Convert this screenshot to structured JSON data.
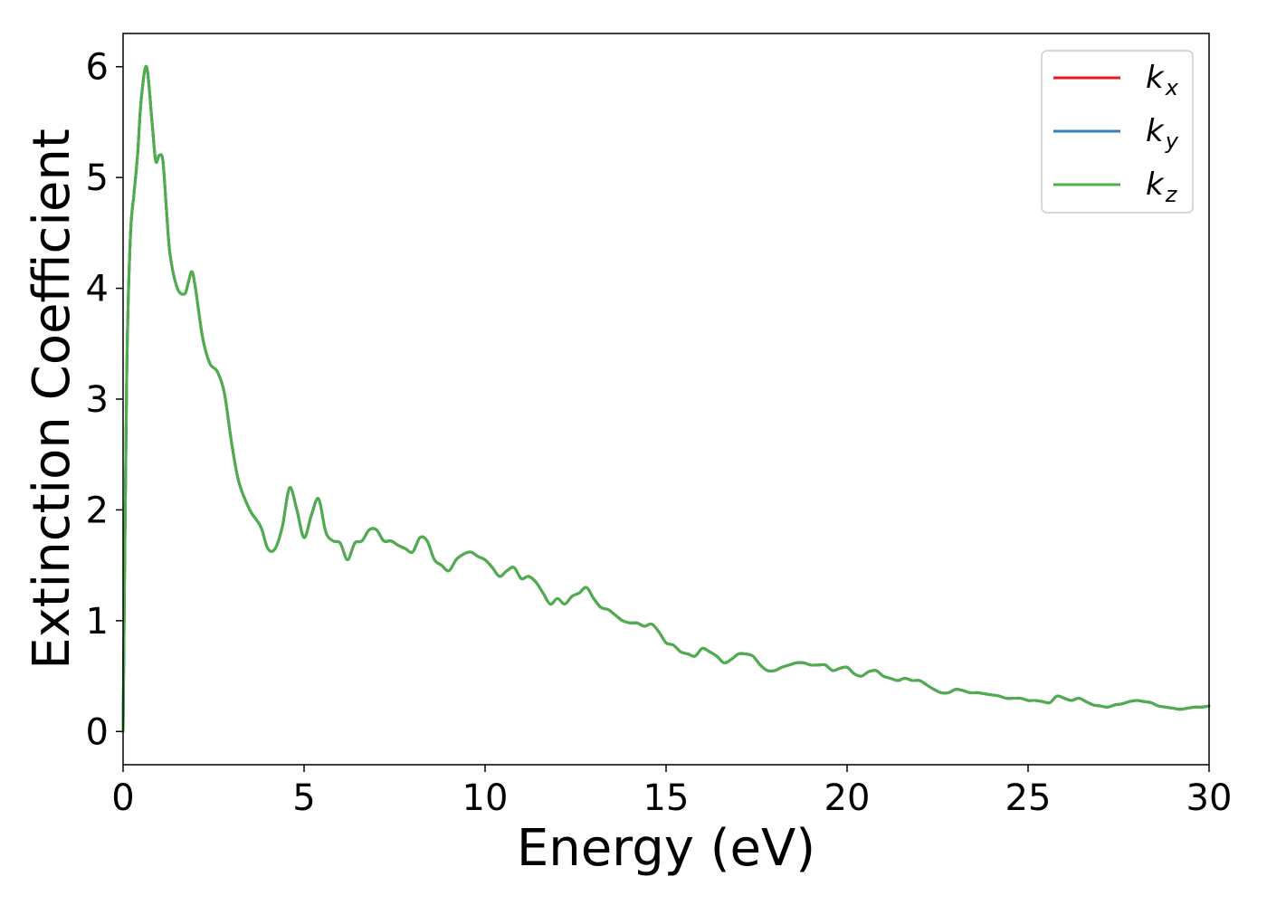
{
  "chart_data": {
    "type": "line",
    "xlabel": "Energy (eV)",
    "ylabel": "Extinction Coefficient",
    "xlim": [
      0,
      30
    ],
    "ylim": [
      -0.3,
      6.3
    ],
    "xticks": [
      "0",
      "5",
      "10",
      "15",
      "20",
      "25",
      "30"
    ],
    "yticks": [
      "0",
      "1",
      "2",
      "3",
      "4",
      "5",
      "6"
    ],
    "grid": false,
    "legend_position": "top-right",
    "x": [
      0,
      0.1,
      0.2,
      0.3,
      0.4,
      0.5,
      0.65,
      0.8,
      0.9,
      1.0,
      1.1,
      1.2,
      1.3,
      1.5,
      1.7,
      1.8,
      1.9,
      2.0,
      2.2,
      2.4,
      2.6,
      2.8,
      3.0,
      3.2,
      3.5,
      3.8,
      4.0,
      4.2,
      4.4,
      4.6,
      4.8,
      5.0,
      5.2,
      5.4,
      5.6,
      5.8,
      6.0,
      6.2,
      6.4,
      6.6,
      6.8,
      7.0,
      7.2,
      7.4,
      7.6,
      7.8,
      8.0,
      8.2,
      8.4,
      8.6,
      8.8,
      9.0,
      9.2,
      9.4,
      9.6,
      9.8,
      10.0,
      10.2,
      10.4,
      10.6,
      10.8,
      11.0,
      11.2,
      11.4,
      11.6,
      11.8,
      12.0,
      12.2,
      12.4,
      12.6,
      12.8,
      13.0,
      13.2,
      13.4,
      13.6,
      13.8,
      14.0,
      14.2,
      14.4,
      14.6,
      14.8,
      15.0,
      15.2,
      15.4,
      15.6,
      15.8,
      16.0,
      16.2,
      16.4,
      16.6,
      16.8,
      17.0,
      17.2,
      17.4,
      17.6,
      17.8,
      18.0,
      18.2,
      18.4,
      18.6,
      18.8,
      19.0,
      19.2,
      19.4,
      19.6,
      19.8,
      20.0,
      20.2,
      20.4,
      20.6,
      20.8,
      21.0,
      21.2,
      21.4,
      21.6,
      21.8,
      22.0,
      22.2,
      22.4,
      22.6,
      22.8,
      23.0,
      23.2,
      23.4,
      23.6,
      23.8,
      24.0,
      24.2,
      24.4,
      24.6,
      24.8,
      25.0,
      25.2,
      25.4,
      25.6,
      25.8,
      26.0,
      26.2,
      26.4,
      26.6,
      26.8,
      27.0,
      27.2,
      27.4,
      27.6,
      27.8,
      28.0,
      28.2,
      28.4,
      28.6,
      28.8,
      29.0,
      29.2,
      29.4,
      29.6,
      29.8,
      30.0
    ],
    "series": [
      {
        "name": "k_x",
        "color": "#e41a1c",
        "y": [
          0,
          3.2,
          4.45,
          4.85,
          5.2,
          5.7,
          6.0,
          5.5,
          5.15,
          5.2,
          5.15,
          4.7,
          4.3,
          4.0,
          3.95,
          4.05,
          4.15,
          4.0,
          3.55,
          3.32,
          3.25,
          3.05,
          2.6,
          2.25,
          2.0,
          1.85,
          1.65,
          1.65,
          1.85,
          2.2,
          2.0,
          1.75,
          1.95,
          2.1,
          1.8,
          1.72,
          1.7,
          1.55,
          1.7,
          1.72,
          1.82,
          1.82,
          1.72,
          1.72,
          1.68,
          1.65,
          1.62,
          1.75,
          1.72,
          1.55,
          1.5,
          1.45,
          1.55,
          1.6,
          1.62,
          1.58,
          1.55,
          1.48,
          1.4,
          1.45,
          1.48,
          1.38,
          1.4,
          1.35,
          1.25,
          1.15,
          1.2,
          1.15,
          1.22,
          1.25,
          1.3,
          1.2,
          1.12,
          1.1,
          1.05,
          1.0,
          0.98,
          0.98,
          0.95,
          0.97,
          0.9,
          0.8,
          0.78,
          0.72,
          0.7,
          0.68,
          0.75,
          0.72,
          0.68,
          0.62,
          0.65,
          0.7,
          0.7,
          0.68,
          0.6,
          0.55,
          0.55,
          0.58,
          0.6,
          0.62,
          0.62,
          0.6,
          0.6,
          0.6,
          0.55,
          0.57,
          0.58,
          0.52,
          0.5,
          0.54,
          0.55,
          0.5,
          0.48,
          0.46,
          0.48,
          0.46,
          0.46,
          0.42,
          0.38,
          0.35,
          0.35,
          0.38,
          0.37,
          0.35,
          0.35,
          0.34,
          0.33,
          0.32,
          0.3,
          0.3,
          0.3,
          0.28,
          0.28,
          0.27,
          0.26,
          0.32,
          0.3,
          0.28,
          0.3,
          0.27,
          0.24,
          0.23,
          0.22,
          0.24,
          0.25,
          0.27,
          0.28,
          0.27,
          0.26,
          0.23,
          0.22,
          0.21,
          0.2,
          0.21,
          0.22,
          0.22,
          0.23
        ]
      },
      {
        "name": "k_y",
        "color": "#377eb8",
        "y": [
          0,
          3.2,
          4.45,
          4.85,
          5.2,
          5.7,
          6.0,
          5.5,
          5.15,
          5.2,
          5.15,
          4.7,
          4.3,
          4.0,
          3.95,
          4.05,
          4.15,
          4.0,
          3.55,
          3.32,
          3.25,
          3.05,
          2.6,
          2.25,
          2.0,
          1.85,
          1.65,
          1.65,
          1.85,
          2.2,
          2.0,
          1.75,
          1.95,
          2.1,
          1.8,
          1.72,
          1.7,
          1.55,
          1.7,
          1.72,
          1.82,
          1.82,
          1.72,
          1.72,
          1.68,
          1.65,
          1.62,
          1.75,
          1.72,
          1.55,
          1.5,
          1.45,
          1.55,
          1.6,
          1.62,
          1.58,
          1.55,
          1.48,
          1.4,
          1.45,
          1.48,
          1.38,
          1.4,
          1.35,
          1.25,
          1.15,
          1.2,
          1.15,
          1.22,
          1.25,
          1.3,
          1.2,
          1.12,
          1.1,
          1.05,
          1.0,
          0.98,
          0.98,
          0.95,
          0.97,
          0.9,
          0.8,
          0.78,
          0.72,
          0.7,
          0.68,
          0.75,
          0.72,
          0.68,
          0.62,
          0.65,
          0.7,
          0.7,
          0.68,
          0.6,
          0.55,
          0.55,
          0.58,
          0.6,
          0.62,
          0.62,
          0.6,
          0.6,
          0.6,
          0.55,
          0.57,
          0.58,
          0.52,
          0.5,
          0.54,
          0.55,
          0.5,
          0.48,
          0.46,
          0.48,
          0.46,
          0.46,
          0.42,
          0.38,
          0.35,
          0.35,
          0.38,
          0.37,
          0.35,
          0.35,
          0.34,
          0.33,
          0.32,
          0.3,
          0.3,
          0.3,
          0.28,
          0.28,
          0.27,
          0.26,
          0.32,
          0.3,
          0.28,
          0.3,
          0.27,
          0.24,
          0.23,
          0.22,
          0.24,
          0.25,
          0.27,
          0.28,
          0.27,
          0.26,
          0.23,
          0.22,
          0.21,
          0.2,
          0.21,
          0.22,
          0.22,
          0.23
        ]
      },
      {
        "name": "k_z",
        "color": "#4daf4a",
        "y": [
          0,
          3.2,
          4.45,
          4.85,
          5.2,
          5.7,
          6.0,
          5.5,
          5.15,
          5.2,
          5.15,
          4.7,
          4.3,
          4.0,
          3.95,
          4.05,
          4.15,
          4.0,
          3.55,
          3.32,
          3.25,
          3.05,
          2.6,
          2.25,
          2.0,
          1.85,
          1.65,
          1.65,
          1.85,
          2.2,
          2.0,
          1.75,
          1.95,
          2.1,
          1.8,
          1.72,
          1.7,
          1.55,
          1.7,
          1.72,
          1.82,
          1.82,
          1.72,
          1.72,
          1.68,
          1.65,
          1.62,
          1.75,
          1.72,
          1.55,
          1.5,
          1.45,
          1.55,
          1.6,
          1.62,
          1.58,
          1.55,
          1.48,
          1.4,
          1.45,
          1.48,
          1.38,
          1.4,
          1.35,
          1.25,
          1.15,
          1.2,
          1.15,
          1.22,
          1.25,
          1.3,
          1.2,
          1.12,
          1.1,
          1.05,
          1.0,
          0.98,
          0.98,
          0.95,
          0.97,
          0.9,
          0.8,
          0.78,
          0.72,
          0.7,
          0.68,
          0.75,
          0.72,
          0.68,
          0.62,
          0.65,
          0.7,
          0.7,
          0.68,
          0.6,
          0.55,
          0.55,
          0.58,
          0.6,
          0.62,
          0.62,
          0.6,
          0.6,
          0.6,
          0.55,
          0.57,
          0.58,
          0.52,
          0.5,
          0.54,
          0.55,
          0.5,
          0.48,
          0.46,
          0.48,
          0.46,
          0.46,
          0.42,
          0.38,
          0.35,
          0.35,
          0.38,
          0.37,
          0.35,
          0.35,
          0.34,
          0.33,
          0.32,
          0.3,
          0.3,
          0.3,
          0.28,
          0.28,
          0.27,
          0.26,
          0.32,
          0.3,
          0.28,
          0.3,
          0.27,
          0.24,
          0.23,
          0.22,
          0.24,
          0.25,
          0.27,
          0.28,
          0.27,
          0.26,
          0.23,
          0.22,
          0.21,
          0.2,
          0.21,
          0.22,
          0.22,
          0.23
        ]
      }
    ],
    "legend": [
      {
        "base": "k",
        "sub": "x",
        "color": "#e41a1c"
      },
      {
        "base": "k",
        "sub": "y",
        "color": "#377eb8"
      },
      {
        "base": "k",
        "sub": "z",
        "color": "#4daf4a"
      }
    ]
  }
}
